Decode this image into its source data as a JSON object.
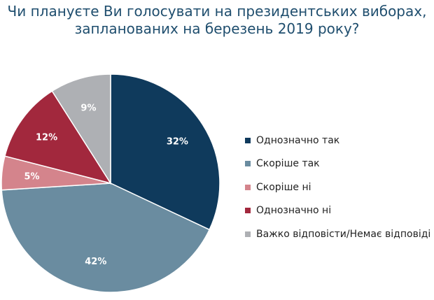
{
  "chart_data": {
    "type": "pie",
    "title_lines": [
      "Чи плануєте Ви голосувати на президентських виборах,",
      "запланованих на березень 2019 року?"
    ],
    "slices": [
      {
        "label": "Однозначно так",
        "value": 32,
        "value_label": "32%",
        "color": "#0f3a5c"
      },
      {
        "label": "Скоріше так",
        "value": 42,
        "value_label": "42%",
        "color": "#6a8ca0"
      },
      {
        "label": "Скоріше ні",
        "value": 5,
        "value_label": "5%",
        "color": "#d4848c"
      },
      {
        "label": "Однозначно ні",
        "value": 12,
        "value_label": "12%",
        "color": "#a2283d"
      },
      {
        "label": "Важко відповісти/Немає відповіді",
        "value": 9,
        "value_label": "9%",
        "color": "#aeb0b4"
      }
    ],
    "start_angle": "12 o'clock",
    "direction": "clockwise",
    "legend_position": "right"
  }
}
